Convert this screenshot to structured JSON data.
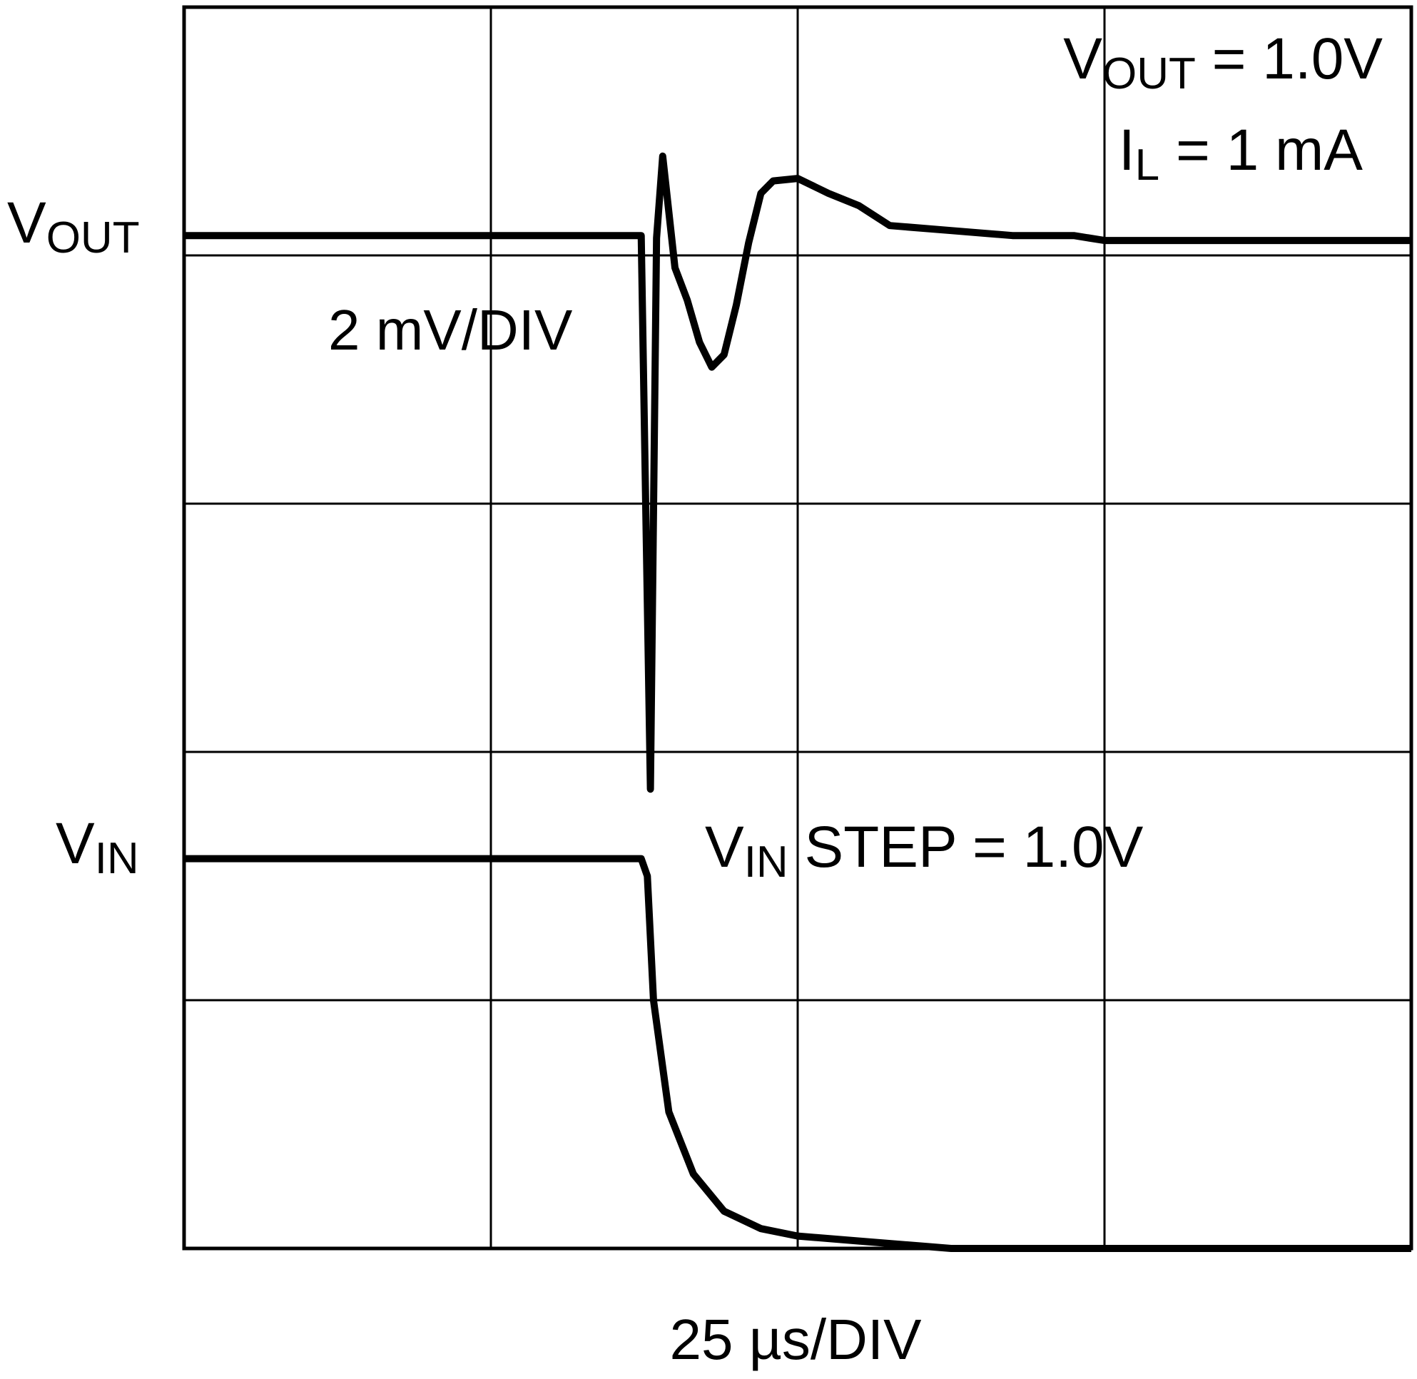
{
  "chart_data": {
    "type": "line",
    "grid": true,
    "grid_divisions": {
      "x": 4,
      "y": 5
    },
    "x_scale_label": "25 µs/DIV",
    "vout_scale_label": "2 mV/DIV",
    "conditions": {
      "vout": {
        "main": "V",
        "sub": "OUT",
        "rest": " = 1.0V"
      },
      "il": {
        "main": "I",
        "sub": "L",
        "rest": " = 1 mA"
      }
    },
    "vin_step_label": {
      "main": "V",
      "sub": "IN",
      "rest": " STEP = 1.0V"
    },
    "channel_labels": {
      "vout": {
        "main": "V",
        "sub": "OUT"
      },
      "vin": {
        "main": "V",
        "sub": "IN"
      }
    },
    "xlim": [
      0,
      4
    ],
    "ylim": [
      0,
      5
    ],
    "series": [
      {
        "name": "VOUT",
        "x": [
          0,
          0.5,
          1.0,
          1.49,
          1.52,
          1.54,
          1.56,
          1.6,
          1.64,
          1.68,
          1.72,
          1.76,
          1.8,
          1.84,
          1.88,
          1.92,
          2.0,
          2.1,
          2.2,
          2.3,
          2.5,
          2.7,
          2.9,
          3.0,
          4.0
        ],
        "y": [
          4.08,
          4.08,
          4.08,
          4.08,
          1.85,
          4.07,
          4.4,
          3.95,
          3.82,
          3.65,
          3.55,
          3.6,
          3.8,
          4.05,
          4.25,
          4.3,
          4.31,
          4.25,
          4.2,
          4.12,
          4.1,
          4.08,
          4.08,
          4.06,
          4.06
        ]
      },
      {
        "name": "VIN",
        "x": [
          0,
          0.5,
          1.0,
          1.49,
          1.51,
          1.53,
          1.58,
          1.66,
          1.76,
          1.88,
          2.0,
          2.2,
          2.4,
          2.5,
          4.0
        ],
        "y": [
          1.57,
          1.57,
          1.57,
          1.57,
          1.5,
          1.0,
          0.55,
          0.3,
          0.15,
          0.08,
          0.05,
          0.03,
          0.01,
          0.0,
          0.0
        ]
      }
    ]
  }
}
